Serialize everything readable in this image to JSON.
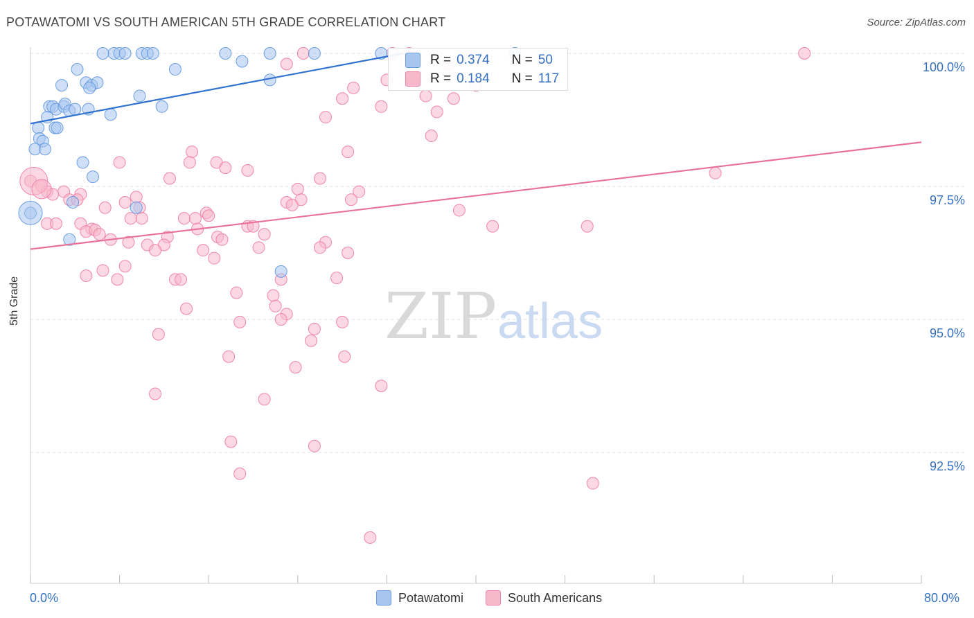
{
  "header": {
    "title": "POTAWATOMI VS SOUTH AMERICAN 5TH GRADE CORRELATION CHART",
    "source": "Source: ZipAtlas.com"
  },
  "watermark": {
    "zip": "ZIP",
    "atlas": "atlas"
  },
  "legend": {
    "rows": [
      {
        "r_label": "R =",
        "r_value": "0.374",
        "n_label": "N =",
        "n_value": "50",
        "color": "#a8c5f0"
      },
      {
        "r_label": "R =",
        "r_value": "0.184",
        "n_label": "N =",
        "n_value": "117",
        "color": "#f7b8cc"
      }
    ]
  },
  "bottom_legend": [
    {
      "label": "Potawatomi",
      "color": "#a8c5f0"
    },
    {
      "label": "South Americans",
      "color": "#f7b8cc"
    }
  ],
  "chart_data": {
    "type": "scatter",
    "title": "POTAWATOMI VS SOUTH AMERICAN 5TH GRADE CORRELATION CHART",
    "xlabel": "",
    "ylabel": "5th Grade",
    "xlim": [
      0,
      80
    ],
    "ylim": [
      90.0,
      100.5
    ],
    "x_tick_labels": [
      "0.0%",
      "80.0%"
    ],
    "y_ticks": [
      92.5,
      95.0,
      97.5,
      100.0
    ],
    "y_tick_labels": [
      "92.5%",
      "95.0%",
      "97.5%",
      "100.0%"
    ],
    "grid": true,
    "series": [
      {
        "name": "Potawatomi",
        "color": "#6a9ee0",
        "fill": "#a8c5f0",
        "line_color": "#2f72d0",
        "trend": [
          [
            0,
            98.68
          ],
          [
            33.5,
            100.0
          ]
        ],
        "points": [
          [
            6.5,
            100.0
          ],
          [
            7.5,
            100.0
          ],
          [
            8.0,
            100.0
          ],
          [
            8.5,
            100.0
          ],
          [
            10.0,
            100.0
          ],
          [
            10.5,
            100.0
          ],
          [
            11.0,
            100.0
          ],
          [
            17.5,
            100.0
          ],
          [
            21.5,
            100.0
          ],
          [
            25.5,
            100.0
          ],
          [
            31.5,
            100.0
          ],
          [
            43.5,
            100.0
          ],
          [
            19.0,
            99.85
          ],
          [
            4.2,
            99.7
          ],
          [
            13.0,
            99.7
          ],
          [
            5.0,
            99.45
          ],
          [
            5.5,
            99.4
          ],
          [
            6.0,
            99.45
          ],
          [
            2.8,
            99.4
          ],
          [
            21.5,
            99.5
          ],
          [
            5.3,
            99.35
          ],
          [
            9.8,
            99.2
          ],
          [
            1.7,
            99.0
          ],
          [
            2.0,
            99.0
          ],
          [
            2.3,
            98.95
          ],
          [
            3.0,
            99.0
          ],
          [
            3.1,
            99.05
          ],
          [
            3.5,
            98.92
          ],
          [
            4.0,
            98.95
          ],
          [
            5.2,
            98.95
          ],
          [
            11.8,
            99.0
          ],
          [
            7.2,
            98.85
          ],
          [
            1.5,
            98.8
          ],
          [
            0.7,
            98.6
          ],
          [
            2.2,
            98.6
          ],
          [
            2.4,
            98.6
          ],
          [
            0.8,
            98.4
          ],
          [
            1.1,
            98.35
          ],
          [
            0.4,
            98.2
          ],
          [
            1.3,
            98.2
          ],
          [
            4.7,
            97.95
          ],
          [
            5.6,
            97.68
          ],
          [
            3.8,
            97.2
          ],
          [
            9.5,
            97.1
          ],
          [
            0.0,
            97.0
          ],
          [
            3.5,
            96.5
          ],
          [
            22.5,
            95.9
          ]
        ]
      },
      {
        "name": "South Americans",
        "color": "#ef86a8",
        "fill": "#f7b8cc",
        "line_color": "#e8719a",
        "trend": [
          [
            0,
            96.32
          ],
          [
            80,
            98.33
          ]
        ],
        "points": [
          [
            24.5,
            100.0
          ],
          [
            32.5,
            100.0
          ],
          [
            34.0,
            100.0
          ],
          [
            69.5,
            100.0
          ],
          [
            37.5,
            99.8
          ],
          [
            23.0,
            99.8
          ],
          [
            32.0,
            99.5
          ],
          [
            40.0,
            99.4
          ],
          [
            29.0,
            99.35
          ],
          [
            28.0,
            99.15
          ],
          [
            35.5,
            99.2
          ],
          [
            38.0,
            99.15
          ],
          [
            31.5,
            99.0
          ],
          [
            36.5,
            98.9
          ],
          [
            26.5,
            98.8
          ],
          [
            36.0,
            98.45
          ],
          [
            28.5,
            98.15
          ],
          [
            14.5,
            98.15
          ],
          [
            8.0,
            97.95
          ],
          [
            14.3,
            97.95
          ],
          [
            16.7,
            97.95
          ],
          [
            17.5,
            97.85
          ],
          [
            19.5,
            97.8
          ],
          [
            61.5,
            97.75
          ],
          [
            12.5,
            97.65
          ],
          [
            26.0,
            97.65
          ],
          [
            0.0,
            97.6
          ],
          [
            1.0,
            97.5
          ],
          [
            1.5,
            97.4
          ],
          [
            3.0,
            97.4
          ],
          [
            2.0,
            97.35
          ],
          [
            4.5,
            97.35
          ],
          [
            24.0,
            97.45
          ],
          [
            29.5,
            97.4
          ],
          [
            9.5,
            97.3
          ],
          [
            3.5,
            97.25
          ],
          [
            4.2,
            97.25
          ],
          [
            8.5,
            97.2
          ],
          [
            24.3,
            97.25
          ],
          [
            28.8,
            97.25
          ],
          [
            23.0,
            97.2
          ],
          [
            23.5,
            97.15
          ],
          [
            6.7,
            97.1
          ],
          [
            9.8,
            97.1
          ],
          [
            38.5,
            97.05
          ],
          [
            15.8,
            97.0
          ],
          [
            16.0,
            96.95
          ],
          [
            9.0,
            96.9
          ],
          [
            10.0,
            96.9
          ],
          [
            13.8,
            96.9
          ],
          [
            14.8,
            96.9
          ],
          [
            1.5,
            96.8
          ],
          [
            2.3,
            96.8
          ],
          [
            4.5,
            96.8
          ],
          [
            5.5,
            96.7
          ],
          [
            5.0,
            96.65
          ],
          [
            5.8,
            96.68
          ],
          [
            15.0,
            96.7
          ],
          [
            19.5,
            96.75
          ],
          [
            20.0,
            96.75
          ],
          [
            41.5,
            96.75
          ],
          [
            50.0,
            96.75
          ],
          [
            6.2,
            96.6
          ],
          [
            21.0,
            96.6
          ],
          [
            12.3,
            96.55
          ],
          [
            16.8,
            96.55
          ],
          [
            17.2,
            96.5
          ],
          [
            7.2,
            96.5
          ],
          [
            8.8,
            96.45
          ],
          [
            10.5,
            96.4
          ],
          [
            12.0,
            96.4
          ],
          [
            26.5,
            96.45
          ],
          [
            20.5,
            96.35
          ],
          [
            15.5,
            96.3
          ],
          [
            26.0,
            96.35
          ],
          [
            28.5,
            96.25
          ],
          [
            11.2,
            96.3
          ],
          [
            16.5,
            96.15
          ],
          [
            8.5,
            96.0
          ],
          [
            6.5,
            95.92
          ],
          [
            5.0,
            95.82
          ],
          [
            22.5,
            95.75
          ],
          [
            7.8,
            95.75
          ],
          [
            13.0,
            95.75
          ],
          [
            13.5,
            95.75
          ],
          [
            27.5,
            95.78
          ],
          [
            18.5,
            95.5
          ],
          [
            21.8,
            95.45
          ],
          [
            22.0,
            95.25
          ],
          [
            23.0,
            95.1
          ],
          [
            14.0,
            95.2
          ],
          [
            22.5,
            95.0
          ],
          [
            18.8,
            94.95
          ],
          [
            28.0,
            94.95
          ],
          [
            25.5,
            94.82
          ],
          [
            11.5,
            94.72
          ],
          [
            25.2,
            94.6
          ],
          [
            17.8,
            94.3
          ],
          [
            28.2,
            94.3
          ],
          [
            23.8,
            94.1
          ],
          [
            31.5,
            93.75
          ],
          [
            11.2,
            93.6
          ],
          [
            21.0,
            93.5
          ],
          [
            18.0,
            92.7
          ],
          [
            25.5,
            92.62
          ],
          [
            18.8,
            92.1
          ],
          [
            50.5,
            91.92
          ],
          [
            30.5,
            90.9
          ]
        ]
      }
    ]
  }
}
